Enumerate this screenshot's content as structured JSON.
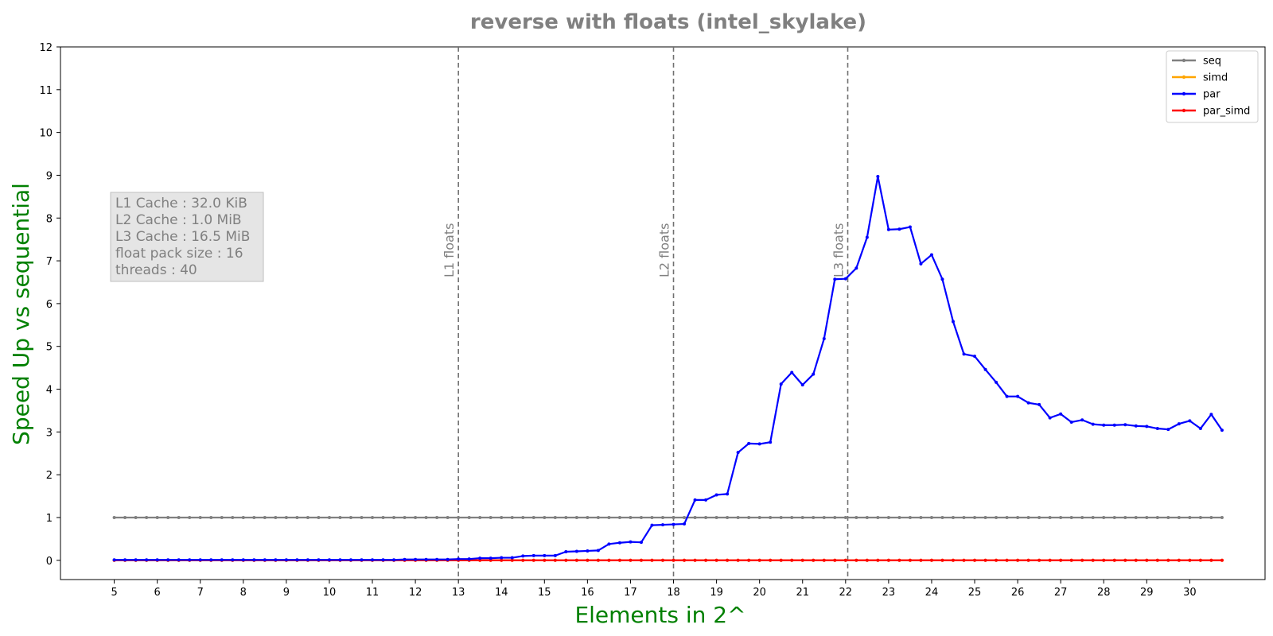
{
  "chart_data": {
    "type": "line",
    "title": "reverse with floats  (intel_skylake)",
    "xlabel": "Elements in 2^",
    "ylabel": "Speed Up vs sequential",
    "xlim": [
      3.75,
      31.75
    ],
    "ylim": [
      -0.45,
      12
    ],
    "x_ticks": [
      5,
      6,
      7,
      8,
      9,
      10,
      11,
      12,
      13,
      14,
      15,
      16,
      17,
      18,
      19,
      20,
      21,
      22,
      23,
      24,
      25,
      26,
      27,
      28,
      29,
      30
    ],
    "y_ticks": [
      0,
      1,
      2,
      3,
      4,
      5,
      6,
      7,
      8,
      9,
      10,
      11,
      12
    ],
    "grid": false,
    "legend_position": "top-right",
    "x": [
      5,
      5.25,
      5.5,
      5.75,
      6,
      6.25,
      6.5,
      6.75,
      7,
      7.25,
      7.5,
      7.75,
      8,
      8.25,
      8.5,
      8.75,
      9,
      9.25,
      9.5,
      9.75,
      10,
      10.25,
      10.5,
      10.75,
      11,
      11.25,
      11.5,
      11.75,
      12,
      12.25,
      12.5,
      12.75,
      13,
      13.25,
      13.5,
      13.75,
      14,
      14.25,
      14.5,
      14.75,
      15,
      15.25,
      15.5,
      15.75,
      16,
      16.25,
      16.5,
      16.75,
      17,
      17.25,
      17.5,
      17.75,
      18,
      18.25,
      18.5,
      18.75,
      19,
      19.25,
      19.5,
      19.75,
      20,
      20.25,
      20.5,
      20.75,
      21,
      21.25,
      21.5,
      21.75,
      22,
      22.25,
      22.5,
      22.75,
      23,
      23.25,
      23.5,
      23.75,
      24,
      24.25,
      24.5,
      24.75,
      25,
      25.25,
      25.5,
      25.75,
      26,
      26.25,
      26.5,
      26.75,
      27,
      27.25,
      27.5,
      27.75,
      28,
      28.25,
      28.5,
      28.75,
      29,
      29.25,
      29.5,
      29.75,
      30,
      30.25,
      30.5,
      30.75
    ],
    "series": [
      {
        "name": "seq",
        "color": "#808080",
        "constant": 1
      },
      {
        "name": "simd",
        "color": "#ffa500",
        "constant": 0
      },
      {
        "name": "par",
        "color": "#0000ff",
        "values": [
          0.01,
          0.01,
          0.01,
          0.01,
          0.01,
          0.01,
          0.01,
          0.01,
          0.01,
          0.01,
          0.01,
          0.01,
          0.01,
          0.01,
          0.01,
          0.01,
          0.01,
          0.01,
          0.01,
          0.01,
          0.01,
          0.01,
          0.01,
          0.01,
          0.01,
          0.01,
          0.01,
          0.02,
          0.02,
          0.02,
          0.02,
          0.02,
          0.03,
          0.03,
          0.05,
          0.05,
          0.06,
          0.06,
          0.1,
          0.11,
          0.11,
          0.11,
          0.2,
          0.21,
          0.22,
          0.23,
          0.38,
          0.41,
          0.43,
          0.42,
          0.82,
          0.83,
          0.84,
          0.85,
          1.41,
          1.41,
          1.53,
          1.55,
          2.52,
          2.73,
          2.72,
          2.76,
          4.12,
          4.39,
          4.1,
          4.35,
          5.18,
          6.57,
          6.58,
          6.83,
          7.55,
          8.97,
          7.73,
          7.74,
          7.79,
          6.93,
          7.14,
          6.57,
          5.58,
          4.82,
          4.77,
          4.46,
          4.16,
          3.83,
          3.83,
          3.68,
          3.64,
          3.33,
          3.42,
          3.23,
          3.28,
          3.18,
          3.16,
          3.16,
          3.17,
          3.14,
          3.13,
          3.08,
          3.06,
          3.19,
          3.26,
          3.08,
          3.41,
          3.04
        ]
      },
      {
        "name": "par_simd",
        "color": "#ff0000",
        "constant": 0
      }
    ],
    "vlines": [
      {
        "x": 13,
        "label": "L1 floats"
      },
      {
        "x": 18,
        "label": "L2 floats"
      },
      {
        "x": 22.05,
        "label": "L3 floats"
      }
    ],
    "info_box": [
      "L1 Cache : 32.0 KiB",
      "L2 Cache : 1.0 MiB",
      "L3 Cache : 16.5 MiB",
      "float pack size : 16",
      "threads : 40"
    ]
  }
}
